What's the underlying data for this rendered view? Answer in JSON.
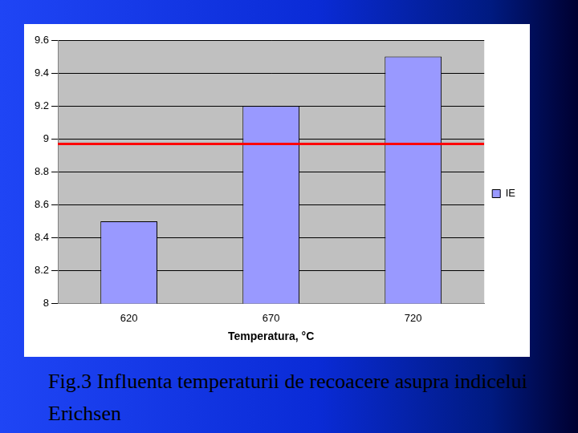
{
  "chart_data": {
    "type": "bar",
    "categories": [
      "620",
      "670",
      "720"
    ],
    "series": [
      {
        "name": "IE",
        "color": "#9999ff",
        "values": [
          8.5,
          9.2,
          9.5
        ]
      }
    ],
    "x_label": "Temperatura, °C",
    "ylim": [
      8,
      9.6
    ],
    "yticks": [
      8,
      8.2,
      8.4,
      8.6,
      8.8,
      9,
      9.2,
      9.4,
      9.6
    ],
    "grid": true,
    "legend": "right",
    "reference_line": {
      "value": 8.97,
      "color": "#ff0000"
    }
  },
  "caption": "Fig.3 Influenta temperaturii de recoacere asupra indicelui Erichsen"
}
